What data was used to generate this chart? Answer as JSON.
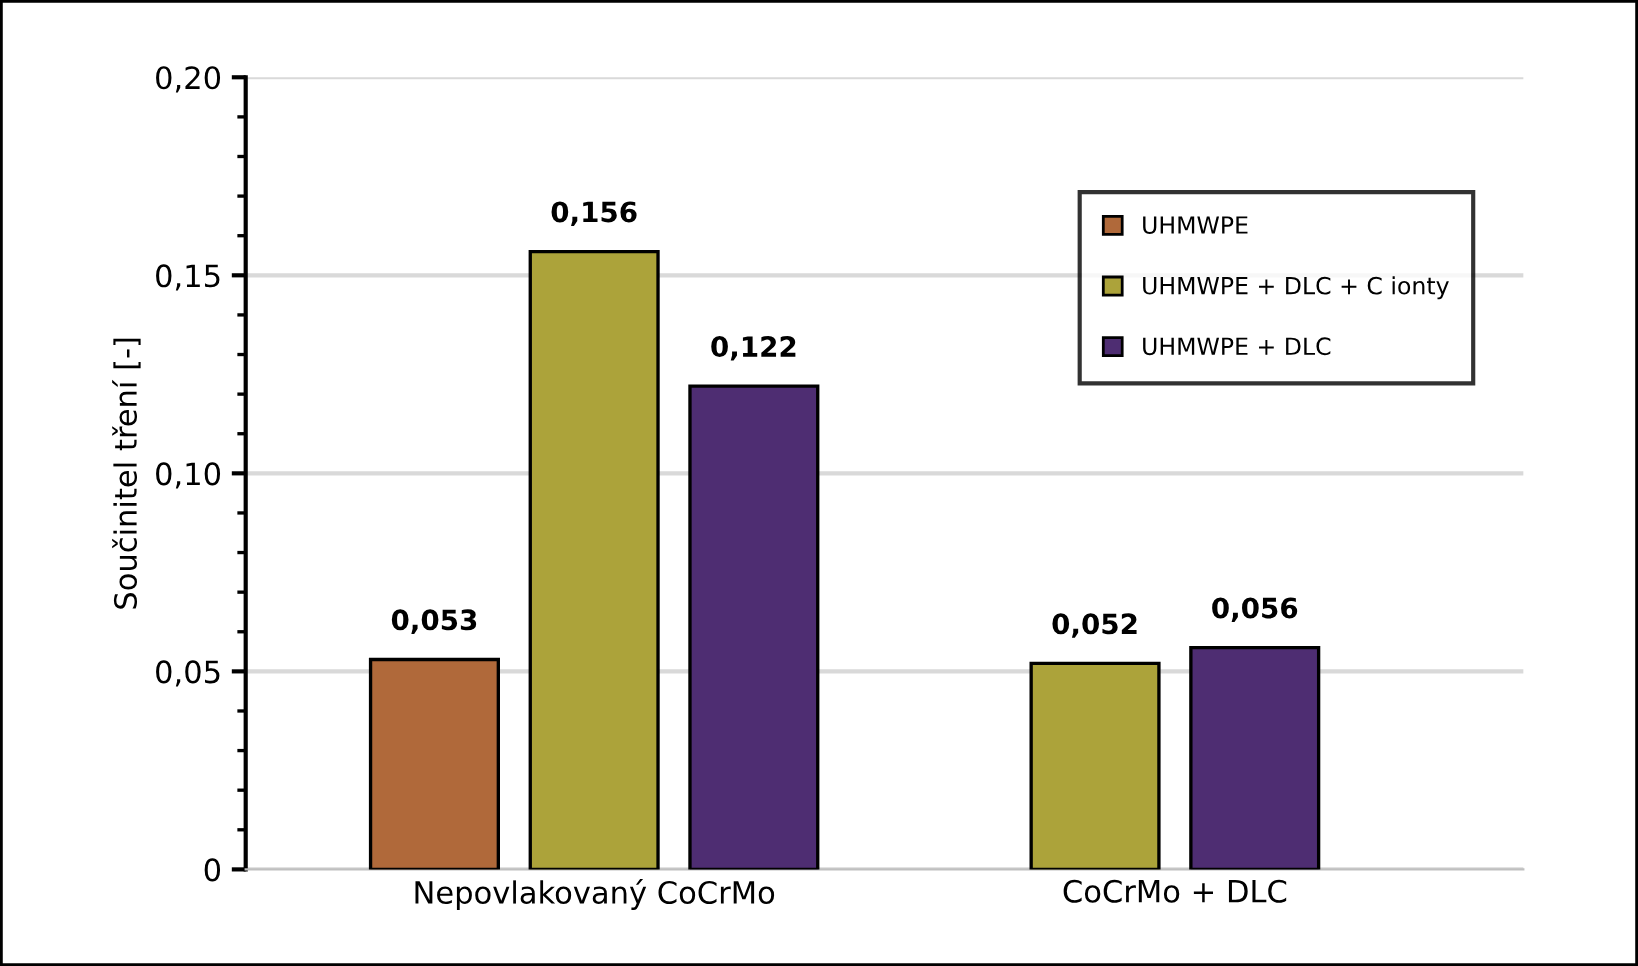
{
  "chart_data": {
    "type": "bar",
    "ylabel": "Součinitel tření [-]",
    "categories": [
      "Nepovlakovaný CoCrMo",
      "CoCrMo + DLC"
    ],
    "series": [
      {
        "name": "UHMWPE",
        "color": "#b0693a",
        "values": [
          0.053,
          null
        ],
        "value_labels": [
          "0,053",
          null
        ]
      },
      {
        "name": "UHMWPE + DLC + C ionty",
        "color": "#aca33a",
        "values": [
          0.156,
          0.052
        ],
        "value_labels": [
          "0,156",
          "0,052"
        ]
      },
      {
        "name": "UHMWPE + DLC",
        "color": "#4e2d72",
        "values": [
          0.122,
          0.056
        ],
        "value_labels": [
          "0,122",
          "0,056"
        ]
      }
    ],
    "ylim": [
      0,
      0.2
    ],
    "yticks": [
      0,
      {
        "value": 0.05,
        "label": "0,05"
      },
      {
        "value": 0.1,
        "label": "0,10"
      },
      {
        "value": 0.15,
        "label": "0,15"
      },
      {
        "value": 0.2,
        "label": "0,20"
      }
    ],
    "grid": "y",
    "legend": "top right"
  }
}
